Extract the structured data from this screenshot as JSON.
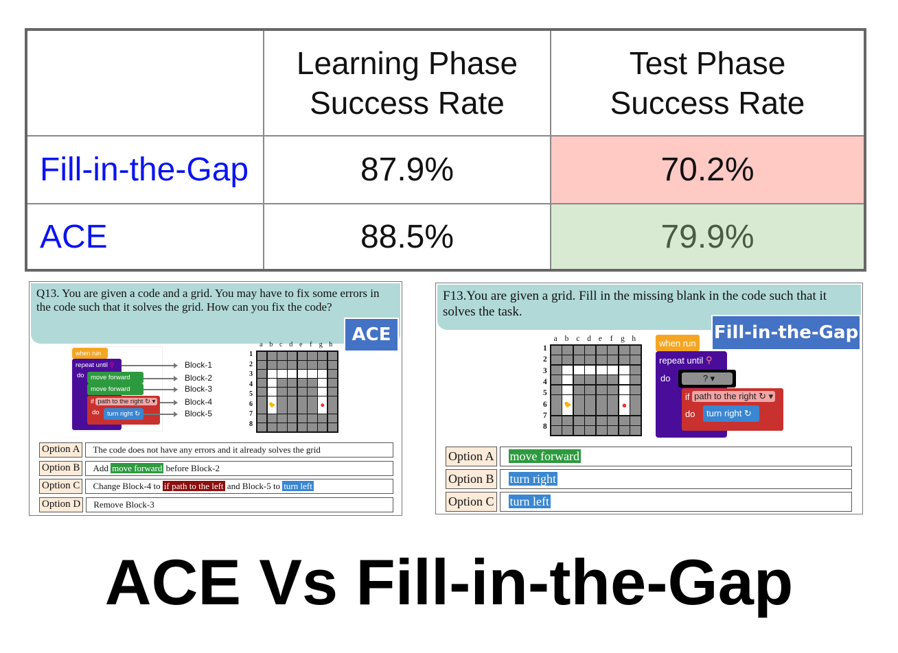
{
  "table": {
    "headers": [
      "",
      "Learning Phase Success Rate",
      "Test Phase Success Rate"
    ],
    "header_lines": [
      [
        "Learning Phase",
        "Success Rate"
      ],
      [
        "Test Phase",
        "Success Rate"
      ]
    ],
    "rows": [
      {
        "label": "Fill-in-the-Gap",
        "learning": "87.9%",
        "test": "70.2%",
        "test_color": "#ffc9c4"
      },
      {
        "label": "ACE",
        "learning": "88.5%",
        "test": "79.9%",
        "test_color": "#d9ead3"
      }
    ],
    "label_color": "#0a14f0"
  },
  "ace_panel": {
    "question": "Q13.  You are given a code and a grid.  You may have to fix some errors in the code such that it solves the grid. How can you fix the code?",
    "badge": "ACE",
    "blocks": {
      "when_run": "when run",
      "repeat_until": "repeat until",
      "do": "do",
      "move1": "move forward",
      "move2": "move forward",
      "if": "if",
      "cond": "path to the right ↻ ▾",
      "do2": "do",
      "turn": "turn right ↻"
    },
    "block_labels": [
      "Block-1",
      "Block-2",
      "Block-3",
      "Block-4",
      "Block-5"
    ],
    "options": [
      {
        "key": "Option A",
        "parts": [
          "The code does not have any errors and it already solves the grid"
        ]
      },
      {
        "key": "Option B",
        "parts": [
          "Add ",
          "move forward",
          " before Block-2"
        ]
      },
      {
        "key": "Option C",
        "parts": [
          "Change Block-4 to ",
          "if path to the left",
          " and Block-5 to ",
          "turn left"
        ]
      },
      {
        "key": "Option D",
        "parts": [
          "Remove Block-3"
        ]
      }
    ]
  },
  "fig_panel": {
    "question": "F13.You are given a grid.  Fill in the missing blank in the code such that it solves the task.",
    "badge": "Fill-in-the-Gap",
    "blocks": {
      "when_run": "when run",
      "repeat_until": "repeat until",
      "do": "do",
      "blank": "?   ▾",
      "if": "if",
      "cond": "path to the right ↻ ▾",
      "do2": "do",
      "turn": "turn right ↻"
    },
    "options": [
      {
        "key": "Option A",
        "value": "move forward",
        "color": "#2e9a3f"
      },
      {
        "key": "Option B",
        "value": "turn right",
        "color": "#3a86d1"
      },
      {
        "key": "Option C",
        "value": "turn left",
        "color": "#3a86d1"
      }
    ]
  },
  "grid": {
    "cols": [
      "a",
      "b",
      "c",
      "d",
      "e",
      "f",
      "g",
      "h"
    ],
    "rows": [
      "1",
      "2",
      "3",
      "4",
      "5",
      "6",
      "7",
      "8"
    ],
    "open_cells": [
      "b3",
      "c3",
      "d3",
      "e3",
      "f3",
      "g3",
      "b4",
      "g4",
      "b5",
      "g5",
      "b6",
      "g6"
    ],
    "start": "b6",
    "goal": "g6"
  },
  "title": "ACE Vs Fill-in-the-Gap"
}
